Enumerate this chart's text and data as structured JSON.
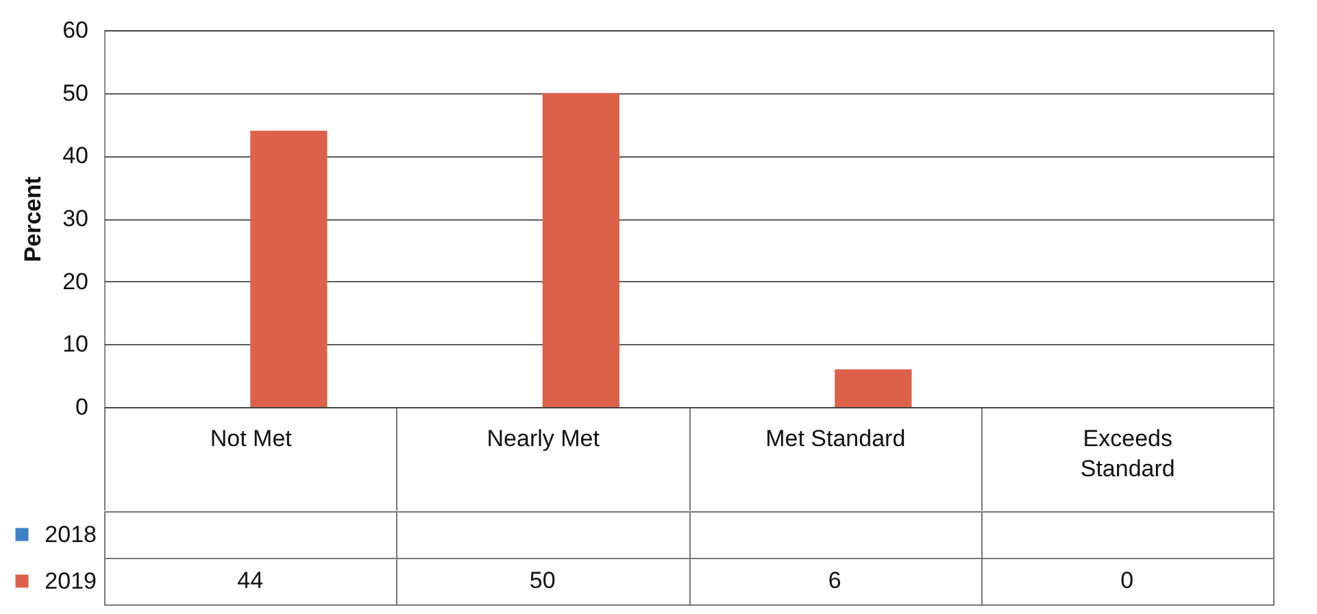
{
  "chart_data": {
    "type": "bar",
    "ylabel": "Percent",
    "categories": [
      "Not Met",
      "Nearly Met",
      "Met Standard",
      "Exceeds Standard"
    ],
    "series": [
      {
        "name": "2018",
        "color": "#3f7fc6",
        "values": [
          null,
          null,
          null,
          null
        ]
      },
      {
        "name": "2019",
        "color": "#dd614a",
        "values": [
          44,
          50,
          6,
          0
        ]
      }
    ],
    "ylim": [
      0,
      60
    ],
    "yticks": [
      0,
      10,
      20,
      30,
      40,
      50,
      60
    ],
    "grid": "y",
    "legend": "bottom left",
    "data_labels": true
  }
}
